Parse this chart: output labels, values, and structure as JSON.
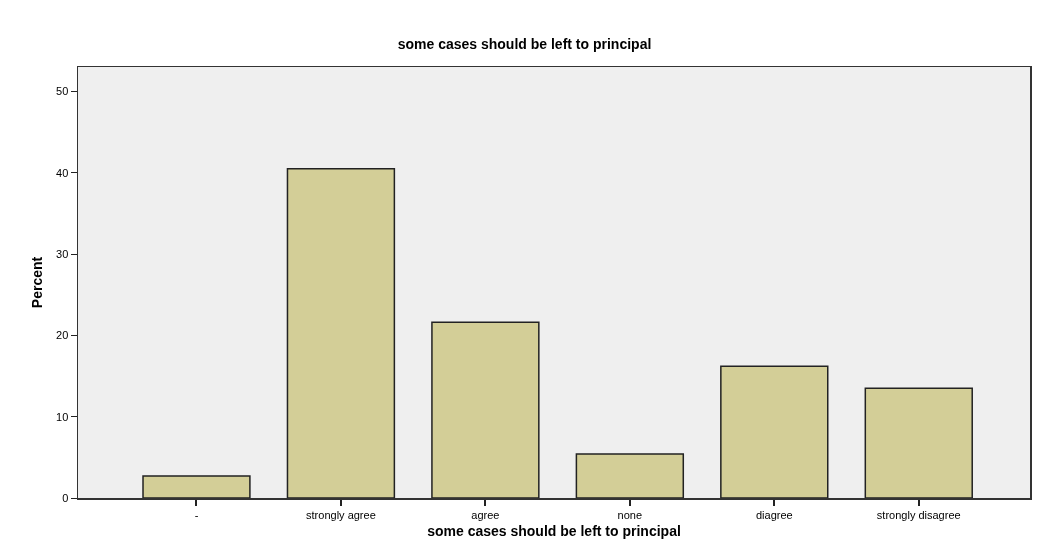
{
  "chart_data": {
    "type": "bar",
    "title": "some cases should be left to principal",
    "xlabel": "some cases should be left to principal",
    "ylabel": "Percent",
    "categories": [
      "-",
      "strongly agree",
      "agree",
      "none",
      "diagree",
      "strongly disagree"
    ],
    "values": [
      2.7,
      40.5,
      21.6,
      5.4,
      16.2,
      13.5
    ],
    "color": "#d3ce97",
    "ylim": [
      0,
      53
    ],
    "yticks": [
      0,
      10,
      20,
      30,
      40,
      50
    ],
    "grid": false
  }
}
